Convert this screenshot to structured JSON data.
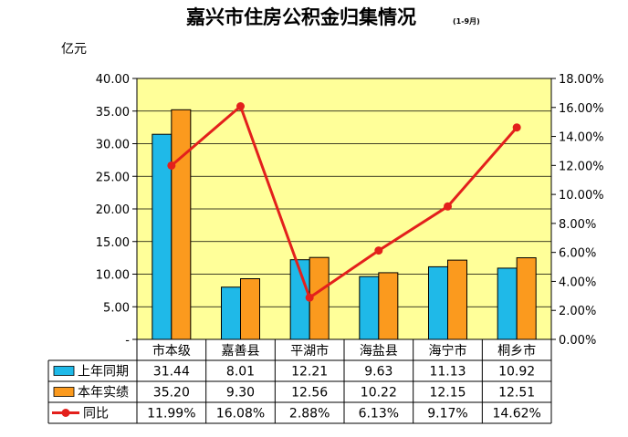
{
  "chart_data": {
    "type": "bar",
    "title": "嘉兴市住房公积金归集情况",
    "subtitle": "(1-9月)",
    "ylabel": "亿元",
    "categories": [
      "市本级",
      "嘉善县",
      "平湖市",
      "海盐县",
      "海宁市",
      "桐乡市"
    ],
    "series": [
      {
        "name": "上年同期",
        "type": "bar",
        "axis": "left",
        "color": "#1fb9e8",
        "values": [
          31.44,
          8.01,
          12.21,
          9.63,
          11.13,
          10.92
        ],
        "labels": [
          "31.44",
          "8.01",
          "12.21",
          "9.63",
          "11.13",
          "10.92"
        ]
      },
      {
        "name": "本年实绩",
        "type": "bar",
        "axis": "left",
        "color": "#fb9a1e",
        "values": [
          35.2,
          9.3,
          12.56,
          10.22,
          12.15,
          12.51
        ],
        "labels": [
          "35.20",
          "9.30",
          "12.56",
          "10.22",
          "12.15",
          "12.51"
        ]
      },
      {
        "name": "同比",
        "type": "line",
        "axis": "right",
        "color": "#e3201c",
        "values": [
          11.99,
          16.08,
          2.88,
          6.13,
          9.17,
          14.62
        ],
        "labels": [
          "11.99%",
          "16.08%",
          "2.88%",
          "6.13%",
          "9.17%",
          "14.62%"
        ]
      }
    ],
    "ylim": [
      0,
      40
    ],
    "y_ticks": [
      "-",
      "5.00",
      "10.00",
      "15.00",
      "20.00",
      "25.00",
      "30.00",
      "35.00",
      "40.00"
    ],
    "y2lim": [
      0,
      18
    ],
    "y2_ticks": [
      "0.00%",
      "2.00%",
      "4.00%",
      "6.00%",
      "8.00%",
      "10.00%",
      "12.00%",
      "14.00%",
      "16.00%",
      "18.00%"
    ],
    "plot_background": "#ffff99",
    "grid": true,
    "legend": "data-table"
  }
}
